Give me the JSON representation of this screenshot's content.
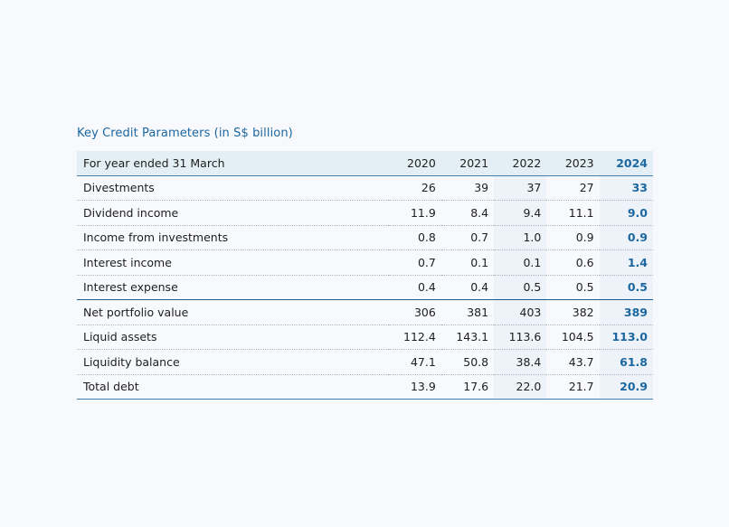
{
  "title": "Key Credit Parameters (in S$ billion)",
  "table": {
    "header": {
      "label": "For year ended 31 March",
      "years": [
        "2020",
        "2021",
        "2022",
        "2023",
        "2024"
      ]
    },
    "rows": [
      {
        "label": "Divestments",
        "values": [
          "26",
          "39",
          "37",
          "27",
          "33"
        ]
      },
      {
        "label": "Dividend income",
        "values": [
          "11.9",
          "8.4",
          "9.4",
          "11.1",
          "9.0"
        ]
      },
      {
        "label": "Income from investments",
        "values": [
          "0.8",
          "0.7",
          "1.0",
          "0.9",
          "0.9"
        ]
      },
      {
        "label": "Interest income",
        "values": [
          "0.7",
          "0.1",
          "0.1",
          "0.6",
          "1.4"
        ]
      },
      {
        "label": "Interest expense",
        "values": [
          "0.4",
          "0.4",
          "0.5",
          "0.5",
          "0.5"
        ]
      },
      {
        "label": "Net portfolio value",
        "values": [
          "306",
          "381",
          "403",
          "382",
          "389"
        ]
      },
      {
        "label": "Liquid assets",
        "values": [
          "112.4",
          "143.1",
          "113.6",
          "104.5",
          "113.0"
        ]
      },
      {
        "label": "Liquidity balance",
        "values": [
          "47.1",
          "50.8",
          "38.4",
          "43.7",
          "61.8"
        ]
      },
      {
        "label": "Total debt",
        "values": [
          "13.9",
          "17.6",
          "22.0",
          "21.7",
          "20.9"
        ]
      }
    ]
  },
  "colors": {
    "accent": "#1c67a0",
    "header_bg": "#e3eef5",
    "rule": "#3f7fb1"
  }
}
